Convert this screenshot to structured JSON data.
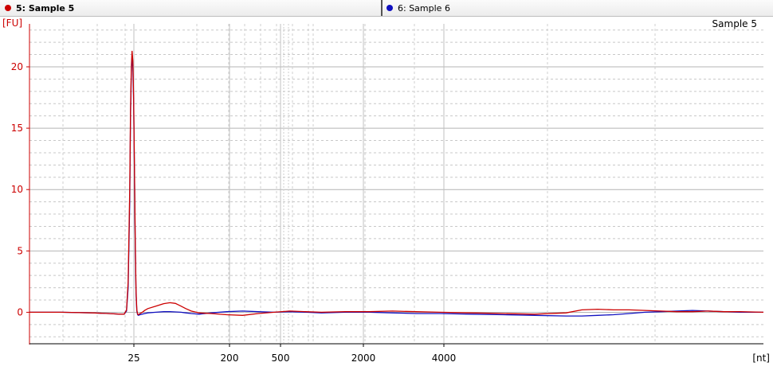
{
  "tabs": [
    {
      "label": "5: Sample 5",
      "color": "#cc0000",
      "active": true
    },
    {
      "label": "6: Sample 6",
      "color": "#1010c0",
      "active": false
    }
  ],
  "chart_data": {
    "type": "line",
    "title": "Sample 5",
    "ylabel": "[FU]",
    "xlabel": "[nt]",
    "ylim": [
      -2.5,
      23.5
    ],
    "grid": true,
    "y_ticks": [
      "0",
      "5",
      "10",
      "15",
      "20"
    ],
    "x_ticks": [
      "25",
      "200",
      "500",
      "2000",
      "4000"
    ],
    "series": [
      {
        "name": "5: Sample 5",
        "color": "#cc0000",
        "x": [
          0,
          40,
          80,
          100,
          115,
          120,
          123,
          125,
          127,
          128,
          129,
          130,
          131,
          132,
          133,
          134,
          135,
          136,
          137,
          138,
          140,
          143,
          146,
          150,
          160,
          170,
          178,
          185,
          192,
          198,
          205,
          215,
          230,
          250,
          270,
          290,
          310,
          330,
          350,
          370,
          400,
          430,
          460,
          490,
          520,
          560,
          600,
          640,
          680,
          700,
          720,
          740,
          760,
          780,
          800,
          820,
          840,
          860,
          880,
          900,
          930
        ],
        "y": [
          0,
          0,
          -0.05,
          -0.1,
          -0.15,
          -0.15,
          0.2,
          2.5,
          10,
          16.5,
          20,
          21.3,
          20.5,
          17.5,
          12,
          6,
          1.8,
          0.2,
          -0.15,
          -0.2,
          -0.1,
          0,
          0.15,
          0.3,
          0.5,
          0.7,
          0.78,
          0.72,
          0.5,
          0.3,
          0.1,
          -0.05,
          -0.1,
          -0.2,
          -0.25,
          -0.1,
          0,
          0.1,
          0.05,
          0,
          0.05,
          0.05,
          0.1,
          0.05,
          0,
          -0.05,
          -0.1,
          -0.15,
          -0.05,
          0.2,
          0.25,
          0.2,
          0.2,
          0.15,
          0.1,
          0.05,
          0.05,
          0.1,
          0.05,
          0.05,
          0
        ]
      },
      {
        "name": "6: Sample 6",
        "color": "#1010c0",
        "x": [
          0,
          40,
          80,
          100,
          115,
          120,
          123,
          125,
          127,
          128,
          129,
          130,
          131,
          132,
          133,
          134,
          135,
          136,
          137,
          138,
          140,
          143,
          146,
          150,
          160,
          170,
          178,
          185,
          192,
          198,
          205,
          215,
          230,
          250,
          270,
          290,
          310,
          330,
          350,
          370,
          400,
          430,
          460,
          490,
          520,
          560,
          600,
          640,
          680,
          700,
          720,
          740,
          760,
          780,
          800,
          820,
          840,
          860,
          880,
          900,
          930
        ],
        "y": [
          0,
          0,
          -0.05,
          -0.1,
          -0.15,
          -0.15,
          0.1,
          2,
          9,
          16,
          19.5,
          20.8,
          20,
          17,
          11.5,
          5.5,
          1.5,
          0.1,
          -0.2,
          -0.25,
          -0.2,
          -0.15,
          -0.1,
          -0.05,
          0,
          0.05,
          0.05,
          0.03,
          0,
          -0.05,
          -0.1,
          -0.15,
          -0.05,
          0.05,
          0.1,
          0.05,
          0,
          0.05,
          0,
          -0.05,
          0,
          0,
          -0.05,
          -0.1,
          -0.1,
          -0.15,
          -0.2,
          -0.25,
          -0.3,
          -0.3,
          -0.25,
          -0.2,
          -0.1,
          0,
          0.05,
          0.1,
          0.15,
          0.1,
          0.05,
          0,
          0
        ]
      }
    ]
  }
}
